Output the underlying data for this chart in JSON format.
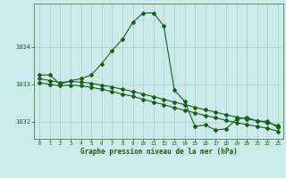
{
  "title": "Graphe pression niveau de la mer (hPa)",
  "background_color": "#cceaea",
  "grid_color": "#aacccc",
  "line_color": "#1a5c1a",
  "xlim": [
    -0.5,
    23.5
  ],
  "ylim": [
    1031.55,
    1035.15
  ],
  "yticks": [
    1032,
    1033,
    1034
  ],
  "xticks": [
    0,
    1,
    2,
    3,
    4,
    5,
    6,
    7,
    8,
    9,
    10,
    11,
    12,
    13,
    14,
    15,
    16,
    17,
    18,
    19,
    20,
    21,
    22,
    23
  ],
  "series1_x": [
    0,
    1,
    2,
    3,
    4,
    5,
    6,
    7,
    8,
    9,
    10,
    11,
    12,
    13,
    14,
    15,
    16,
    17,
    18,
    19,
    20,
    21,
    22,
    23
  ],
  "series1_y": [
    1033.25,
    1033.25,
    1033.0,
    1033.1,
    1033.15,
    1033.25,
    1033.55,
    1033.9,
    1034.2,
    1034.65,
    1034.9,
    1034.9,
    1034.55,
    1032.85,
    1032.55,
    1031.88,
    1031.92,
    1031.78,
    1031.82,
    1032.07,
    1032.12,
    1032.02,
    1032.02,
    1031.85
  ],
  "series2_x": [
    0,
    1,
    2,
    3,
    4,
    5,
    6,
    7,
    8,
    9,
    10,
    11,
    12,
    13,
    14,
    15,
    16,
    17,
    18,
    19,
    20,
    21,
    22,
    23
  ],
  "series2_y": [
    1033.15,
    1033.1,
    1033.05,
    1033.08,
    1033.06,
    1033.03,
    1032.98,
    1032.93,
    1032.87,
    1032.81,
    1032.74,
    1032.67,
    1032.6,
    1032.53,
    1032.46,
    1032.39,
    1032.32,
    1032.26,
    1032.19,
    1032.13,
    1032.08,
    1032.03,
    1031.98,
    1031.9
  ],
  "series3_x": [
    0,
    1,
    2,
    3,
    4,
    5,
    6,
    7,
    8,
    9,
    10,
    11,
    12,
    13,
    14,
    15,
    16,
    17,
    18,
    19,
    20,
    21,
    22,
    23
  ],
  "series3_y": [
    1033.05,
    1033.0,
    1032.96,
    1032.98,
    1032.96,
    1032.92,
    1032.87,
    1032.81,
    1032.74,
    1032.68,
    1032.6,
    1032.53,
    1032.46,
    1032.38,
    1032.31,
    1032.24,
    1032.17,
    1032.11,
    1032.04,
    1031.98,
    1031.93,
    1031.88,
    1031.83,
    1031.75
  ]
}
